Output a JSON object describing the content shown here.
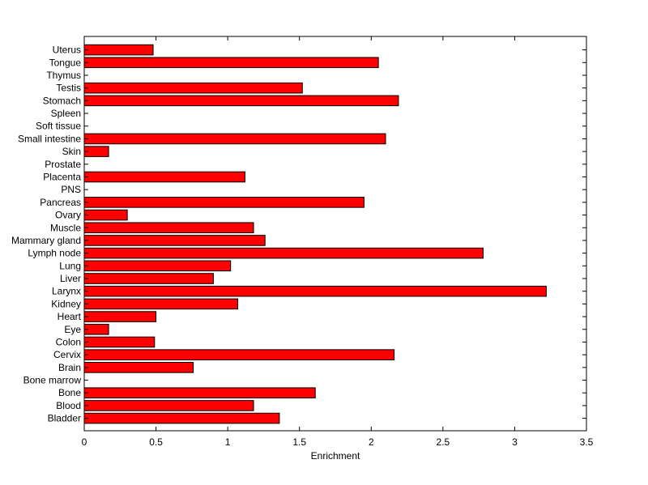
{
  "chart_data": {
    "type": "bar",
    "orientation": "horizontal",
    "xlabel": "Enrichment",
    "ylabel": "",
    "title": "",
    "xlim": [
      0,
      3.5
    ],
    "xticks": [
      0,
      0.5,
      1,
      1.5,
      2,
      2.5,
      3,
      3.5
    ],
    "xtick_labels": [
      "0",
      "0.5",
      "1",
      "1.5",
      "2",
      "2.5",
      "3",
      "3.5"
    ],
    "grid": false,
    "bar_color": "#ff0000",
    "bar_edge_color": "#000000",
    "categories": [
      "Bladder",
      "Blood",
      "Bone",
      "Bone marrow",
      "Brain",
      "Cervix",
      "Colon",
      "Eye",
      "Heart",
      "Kidney",
      "Larynx",
      "Liver",
      "Lung",
      "Lymph node",
      "Mammary gland",
      "Muscle",
      "Ovary",
      "Pancreas",
      "PNS",
      "Placenta",
      "Prostate",
      "Skin",
      "Small intestine",
      "Soft tissue",
      "Spleen",
      "Stomach",
      "Testis",
      "Thymus",
      "Tongue",
      "Uterus"
    ],
    "values": [
      1.36,
      1.18,
      1.61,
      0,
      0.76,
      2.16,
      0.49,
      0.17,
      0.5,
      1.07,
      3.22,
      0.9,
      1.02,
      2.78,
      1.26,
      1.18,
      0.3,
      1.95,
      0,
      1.12,
      0,
      0.17,
      2.1,
      0,
      0,
      2.19,
      1.52,
      0,
      2.05,
      0.48
    ]
  }
}
